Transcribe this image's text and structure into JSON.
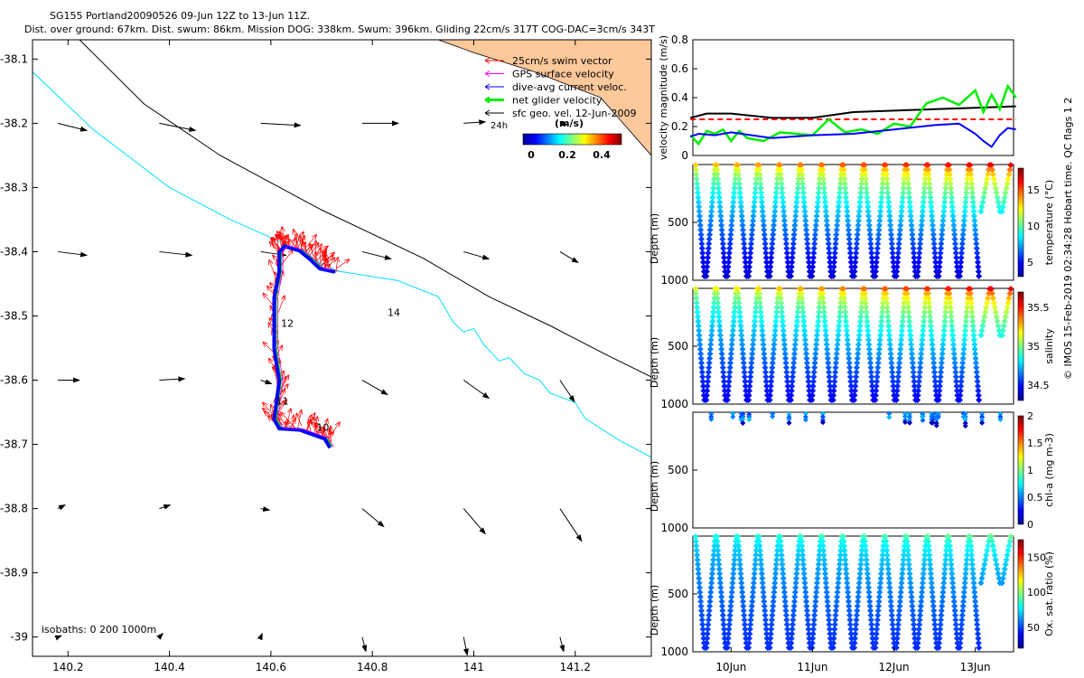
{
  "title_line1": "SG155 Portland20090526 09-Jun 12Z to 13-Jun 11Z.",
  "title_line2": "Dist. over ground: 67km. Dist. swum: 86km. Mission DOG: 338km. Swum: 396km. Gliding 22cm/s 317T COG-DAC=3cm/s 343T",
  "footer": "© IMOS 15-Feb-2019 02:34:28 Hobart time. QC flags 1  2",
  "colors": {
    "swim_vector": "#ff0000",
    "gps_velocity": "#ff00ff",
    "dac_velocity": "#0000ff",
    "net_velocity": "#00ee00",
    "geo_velocity": "#000000",
    "track": "#00e0ff",
    "land": "#fdc89a",
    "isobath": "#000000"
  },
  "chart_data": [
    {
      "type": "map",
      "xlim": [
        140.13,
        141.35
      ],
      "ylim": [
        -39.03,
        -38.07
      ],
      "xticks": [
        "140.2",
        "140.4",
        "140.6",
        "140.8",
        "141",
        "141.2"
      ],
      "xtick_values": [
        140.2,
        140.4,
        140.6,
        140.8,
        141.0,
        141.2
      ],
      "yticks": [
        "-38.1",
        "-38.2",
        "-38.3",
        "-38.4",
        "-38.5",
        "-38.6",
        "-38.7",
        "-38.8",
        "-38.9",
        "-39"
      ],
      "ytick_values": [
        -38.1,
        -38.2,
        -38.3,
        -38.4,
        -38.5,
        -38.6,
        -38.7,
        -38.8,
        -38.9,
        -39.0
      ],
      "legend": [
        {
          "label": "25cm/s swim vector",
          "color": "#ff0000"
        },
        {
          "label": "GPS surface velocity",
          "color": "#ff00ff"
        },
        {
          "label": "dive-avg current veloc.",
          "color": "#0000ff"
        },
        {
          "label": "net glider velocity",
          "color": "#00ee00"
        },
        {
          "label": "sfc geo. vel. 12-Jun-2009",
          "color": "#000000"
        }
      ],
      "colorbar": {
        "label": "(m/s)",
        "ticks": [
          "0",
          "0.2",
          "0.4"
        ]
      },
      "annotation_24h": "24h",
      "isobath_note": "isobaths: 0   200  1000m",
      "day_labels": [
        {
          "text": "14",
          "lon": 140.83,
          "lat": -38.5
        },
        {
          "text": "12",
          "lon": 140.62,
          "lat": -38.517
        },
        {
          "text": "11",
          "lon": 140.61,
          "lat": -38.638
        },
        {
          "text": "10",
          "lon": 140.69,
          "lat": -38.679
        }
      ],
      "track_lonlat": [
        [
          140.72,
          -38.704
        ],
        [
          140.71,
          -38.69
        ],
        [
          140.66,
          -38.676
        ],
        [
          140.62,
          -38.674
        ],
        [
          140.61,
          -38.66
        ],
        [
          140.62,
          -38.6
        ],
        [
          140.61,
          -38.55
        ],
        [
          140.61,
          -38.47
        ],
        [
          140.62,
          -38.43
        ],
        [
          140.62,
          -38.4
        ],
        [
          140.63,
          -38.39
        ],
        [
          140.66,
          -38.397
        ],
        [
          140.68,
          -38.41
        ],
        [
          140.7,
          -38.425
        ],
        [
          140.73,
          -38.43
        ]
      ],
      "track_cyan": [
        [
          140.13,
          -38.12
        ],
        [
          140.25,
          -38.21
        ],
        [
          140.4,
          -38.3
        ],
        [
          140.52,
          -38.35
        ],
        [
          140.62,
          -38.385
        ],
        [
          140.73,
          -38.43
        ],
        [
          140.85,
          -38.445
        ],
        [
          140.93,
          -38.47
        ],
        [
          140.96,
          -38.51
        ],
        [
          140.98,
          -38.525
        ],
        [
          141.0,
          -38.52
        ],
        [
          141.02,
          -38.545
        ],
        [
          141.05,
          -38.57
        ],
        [
          141.07,
          -38.565
        ],
        [
          141.1,
          -38.59
        ],
        [
          141.13,
          -38.6
        ],
        [
          141.15,
          -38.62
        ],
        [
          141.2,
          -38.635
        ],
        [
          141.22,
          -38.66
        ],
        [
          141.29,
          -38.695
        ],
        [
          141.35,
          -38.72
        ]
      ],
      "isobath_line": [
        [
          140.21,
          -38.06
        ],
        [
          140.35,
          -38.17
        ],
        [
          140.5,
          -38.25
        ],
        [
          140.7,
          -38.335
        ],
        [
          140.9,
          -38.41
        ],
        [
          141.03,
          -38.47
        ],
        [
          141.15,
          -38.515
        ],
        [
          141.26,
          -38.56
        ],
        [
          141.35,
          -38.595
        ]
      ],
      "geo_vectors": [
        {
          "lon": 140.18,
          "lat": -38.2,
          "u": 0.4,
          "v": -0.1
        },
        {
          "lon": 140.38,
          "lat": -38.2,
          "u": 0.5,
          "v": -0.1
        },
        {
          "lon": 140.58,
          "lat": -38.2,
          "u": 0.55,
          "v": -0.03
        },
        {
          "lon": 140.78,
          "lat": -38.2,
          "u": 0.5,
          "v": 0.0
        },
        {
          "lon": 140.98,
          "lat": -38.2,
          "u": 0.3,
          "v": 0.02
        },
        {
          "lon": 141.17,
          "lat": -38.2,
          "u": 0.1,
          "v": -0.02
        },
        {
          "lon": 140.18,
          "lat": -38.4,
          "u": 0.4,
          "v": -0.05
        },
        {
          "lon": 140.38,
          "lat": -38.4,
          "u": 0.45,
          "v": -0.05
        },
        {
          "lon": 140.58,
          "lat": -38.4,
          "u": 0.35,
          "v": -0.05
        },
        {
          "lon": 140.78,
          "lat": -38.4,
          "u": 0.4,
          "v": -0.1
        },
        {
          "lon": 140.98,
          "lat": -38.4,
          "u": 0.35,
          "v": -0.1
        },
        {
          "lon": 141.17,
          "lat": -38.4,
          "u": 0.25,
          "v": -0.15
        },
        {
          "lon": 140.18,
          "lat": -38.6,
          "u": 0.3,
          "v": 0.0
        },
        {
          "lon": 140.38,
          "lat": -38.6,
          "u": 0.35,
          "v": 0.02
        },
        {
          "lon": 140.58,
          "lat": -38.6,
          "u": 0.15,
          "v": -0.05
        },
        {
          "lon": 140.78,
          "lat": -38.6,
          "u": 0.35,
          "v": -0.2
        },
        {
          "lon": 140.98,
          "lat": -38.6,
          "u": 0.35,
          "v": -0.25
        },
        {
          "lon": 141.17,
          "lat": -38.6,
          "u": 0.2,
          "v": -0.3
        },
        {
          "lon": 140.18,
          "lat": -38.8,
          "u": 0.1,
          "v": 0.05
        },
        {
          "lon": 140.38,
          "lat": -38.8,
          "u": 0.15,
          "v": 0.05
        },
        {
          "lon": 140.58,
          "lat": -38.8,
          "u": 0.12,
          "v": -0.02
        },
        {
          "lon": 140.78,
          "lat": -38.8,
          "u": 0.3,
          "v": -0.25
        },
        {
          "lon": 140.98,
          "lat": -38.8,
          "u": 0.3,
          "v": -0.35
        },
        {
          "lon": 141.17,
          "lat": -38.8,
          "u": 0.3,
          "v": -0.45
        },
        {
          "lon": 140.18,
          "lat": -39.0,
          "u": 0.05,
          "v": 0.02
        },
        {
          "lon": 140.38,
          "lat": -39.0,
          "u": 0.05,
          "v": 0.05
        },
        {
          "lon": 140.58,
          "lat": -39.0,
          "u": 0.02,
          "v": 0.05
        },
        {
          "lon": 140.78,
          "lat": -39.0,
          "u": 0.05,
          "v": -0.2
        },
        {
          "lon": 140.98,
          "lat": -39.0,
          "u": 0.05,
          "v": -0.25
        },
        {
          "lon": 141.17,
          "lat": -39.0,
          "u": 0.05,
          "v": -0.2
        }
      ]
    },
    {
      "type": "line",
      "ylabel": "velocity magnitude (m/s)",
      "ylim": [
        0,
        0.8
      ],
      "yticks": [
        "0",
        "0.2",
        "0.4",
        "0.6",
        "0.8"
      ],
      "ytick_values": [
        0,
        0.2,
        0.4,
        0.6,
        0.8
      ],
      "x_days": [
        9.5,
        13.5
      ],
      "series": [
        {
          "name": "sfc geo vel",
          "color": "#000000",
          "x": [
            9.5,
            9.7,
            10.0,
            10.5,
            11.0,
            11.5,
            12.0,
            12.5,
            13.0,
            13.5
          ],
          "values": [
            0.26,
            0.29,
            0.29,
            0.26,
            0.26,
            0.3,
            0.31,
            0.32,
            0.33,
            0.34
          ]
        },
        {
          "name": "25cm/s reference",
          "color": "#ff0000",
          "dashed": true,
          "x": [
            9.5,
            13.5
          ],
          "values": [
            0.25,
            0.25
          ]
        },
        {
          "name": "net glider velocity",
          "color": "#00ee00",
          "x": [
            9.5,
            9.6,
            9.7,
            9.8,
            9.9,
            10.0,
            10.1,
            10.2,
            10.4,
            10.6,
            10.8,
            11.0,
            11.2,
            11.4,
            11.6,
            11.8,
            12.0,
            12.2,
            12.4,
            12.6,
            12.8,
            13.0,
            13.1,
            13.2,
            13.3,
            13.4,
            13.5
          ],
          "values": [
            0.14,
            0.08,
            0.17,
            0.15,
            0.18,
            0.1,
            0.17,
            0.12,
            0.1,
            0.16,
            0.15,
            0.14,
            0.25,
            0.16,
            0.18,
            0.15,
            0.22,
            0.2,
            0.36,
            0.4,
            0.35,
            0.45,
            0.3,
            0.42,
            0.32,
            0.48,
            0.4
          ]
        },
        {
          "name": "dive-avg current",
          "color": "#0000ff",
          "x": [
            9.5,
            9.6,
            9.8,
            10.0,
            10.5,
            11.0,
            11.5,
            12.0,
            12.5,
            12.8,
            13.0,
            13.1,
            13.2,
            13.3,
            13.4,
            13.5
          ],
          "values": [
            0.13,
            0.15,
            0.14,
            0.16,
            0.12,
            0.14,
            0.15,
            0.18,
            0.21,
            0.22,
            0.15,
            0.1,
            0.06,
            0.14,
            0.19,
            0.18
          ]
        }
      ]
    },
    {
      "type": "scatter",
      "ylabel": "Depth (m)",
      "yticks": [
        "500",
        "1000"
      ],
      "ytick_values": [
        500,
        1000
      ],
      "ylim": [
        0,
        1000
      ],
      "colorbar": {
        "label": "temperature (°C)",
        "ticks": [
          "5",
          "10",
          "15"
        ],
        "tick_values": [
          5,
          10,
          15
        ],
        "range": [
          3,
          18
        ]
      },
      "profile_range": [
        3,
        18
      ],
      "surface_trend": [
        14,
        18
      ],
      "deep_value": 4,
      "min_depth": 0,
      "max_depth": 990,
      "partial_last": true
    },
    {
      "type": "scatter",
      "ylabel": "Depth (m)",
      "yticks": [
        "500",
        "1000"
      ],
      "ytick_values": [
        500,
        1000
      ],
      "ylim": [
        0,
        1000
      ],
      "colorbar": {
        "label": "salinity",
        "ticks": [
          "34.5",
          "35",
          "35.5"
        ],
        "tick_values": [
          34.5,
          35,
          35.5
        ],
        "range": [
          34.3,
          35.7
        ]
      },
      "profile_range": [
        34.3,
        35.7
      ],
      "surface_trend": [
        35.2,
        35.7
      ],
      "deep_value": 34.45,
      "min_depth": 0,
      "max_depth": 990,
      "partial_last": true
    },
    {
      "type": "scatter",
      "ylabel": "Depth (m)",
      "yticks": [
        "500",
        "1000"
      ],
      "ytick_values": [
        500,
        1000
      ],
      "ylim": [
        0,
        1000
      ],
      "colorbar": {
        "label": "chl-a (mg m-3)",
        "ticks": [
          "0",
          "0.5",
          "1",
          "1.5",
          "2"
        ],
        "tick_values": [
          0,
          0.5,
          1,
          1.5,
          2
        ],
        "range": [
          0,
          2
        ]
      },
      "note": "surface-only sparse samples",
      "min_depth": 0,
      "max_depth": 190
    },
    {
      "type": "scatter",
      "ylabel": "Depth (m)",
      "yticks": [
        "500",
        "1000"
      ],
      "ytick_values": [
        500,
        1000
      ],
      "ylim": [
        0,
        1000
      ],
      "colorbar": {
        "label": "Ox. sat. ratio (%)",
        "ticks": [
          "50",
          "100",
          "150"
        ],
        "tick_values": [
          50,
          100,
          150
        ],
        "range": [
          20,
          175
        ]
      },
      "profile_range": [
        20,
        110
      ],
      "surface_trend": [
        85,
        100
      ],
      "deep_value": 45,
      "min_depth": 0,
      "max_depth": 990,
      "partial_last": true
    }
  ],
  "xticks_time": [
    "10Jun",
    "11Jun",
    "12Jun",
    "13Jun"
  ],
  "xtick_time_values": [
    10,
    11,
    12,
    13
  ],
  "x_time_range": [
    9.53,
    13.47
  ],
  "profile_count": 30
}
